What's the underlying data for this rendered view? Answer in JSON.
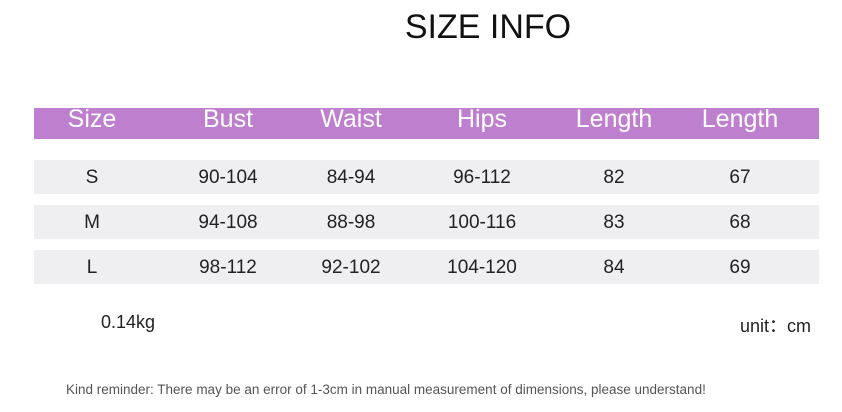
{
  "title": "SIZE INFO",
  "table": {
    "headers": [
      "Size",
      "Bust",
      "Waist",
      "Hips",
      "Length",
      "Length"
    ],
    "header_color": "#bf7fcf",
    "row_color": "#efeff1",
    "rows": [
      [
        "S",
        "90-104",
        "84-94",
        "96-112",
        "82",
        "67"
      ],
      [
        "M",
        "94-108",
        "88-98",
        "100-116",
        "83",
        "68"
      ],
      [
        "L",
        "98-112",
        "92-102",
        "104-120",
        "84",
        "69"
      ]
    ]
  },
  "weight": "0.14kg",
  "unit": "unit：cm",
  "reminder": "Kind reminder: There may be an error of 1-3cm in manual measurement of dimensions, please understand!"
}
